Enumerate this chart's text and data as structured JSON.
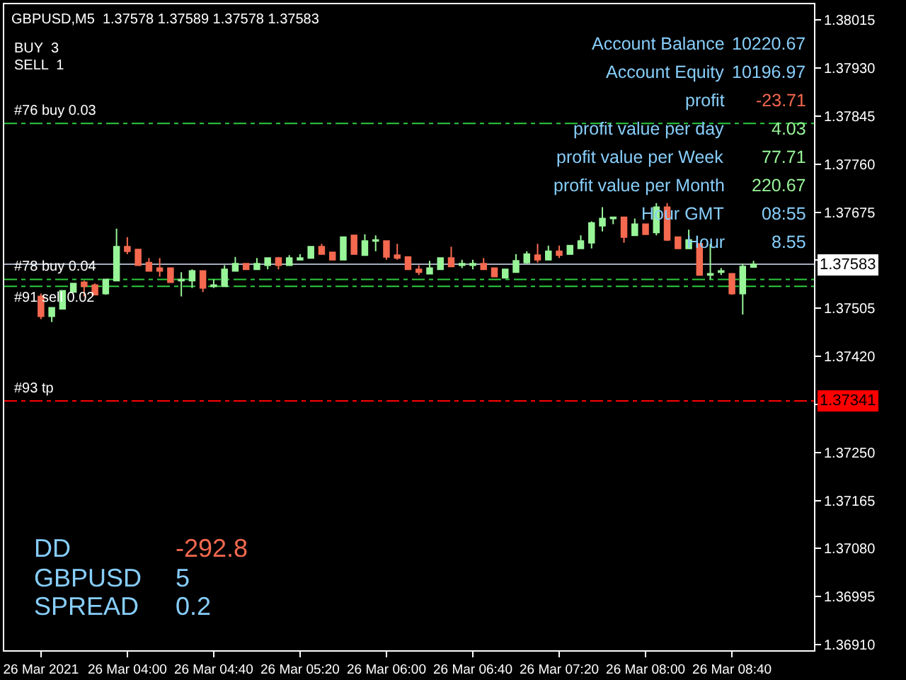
{
  "chart_data": {
    "type": "candlestick",
    "title": "GBPUSD,M5  1.37578 1.37589 1.37578 1.37583",
    "x": [
      "2021-03-26T03:20",
      "2021-03-26T03:25",
      "2021-03-26T03:30",
      "2021-03-26T03:35",
      "2021-03-26T03:40",
      "2021-03-26T03:45",
      "2021-03-26T03:50",
      "2021-03-26T03:55",
      "2021-03-26T04:00",
      "2021-03-26T04:05",
      "2021-03-26T04:10",
      "2021-03-26T04:15",
      "2021-03-26T04:20",
      "2021-03-26T04:25",
      "2021-03-26T04:30",
      "2021-03-26T04:35",
      "2021-03-26T04:40",
      "2021-03-26T04:45",
      "2021-03-26T04:50",
      "2021-03-26T04:55",
      "2021-03-26T05:00",
      "2021-03-26T05:05",
      "2021-03-26T05:10",
      "2021-03-26T05:15",
      "2021-03-26T05:20",
      "2021-03-26T05:25",
      "2021-03-26T05:30",
      "2021-03-26T05:35",
      "2021-03-26T05:40",
      "2021-03-26T05:45",
      "2021-03-26T05:50",
      "2021-03-26T05:55",
      "2021-03-26T06:00",
      "2021-03-26T06:05",
      "2021-03-26T06:10",
      "2021-03-26T06:15",
      "2021-03-26T06:20",
      "2021-03-26T06:25",
      "2021-03-26T06:30",
      "2021-03-26T06:35",
      "2021-03-26T06:40",
      "2021-03-26T06:45",
      "2021-03-26T06:50",
      "2021-03-26T06:55",
      "2021-03-26T07:00",
      "2021-03-26T07:05",
      "2021-03-26T07:10",
      "2021-03-26T07:15",
      "2021-03-26T07:20",
      "2021-03-26T07:25",
      "2021-03-26T07:30",
      "2021-03-26T07:35",
      "2021-03-26T07:40",
      "2021-03-26T07:45",
      "2021-03-26T07:50",
      "2021-03-26T07:55",
      "2021-03-26T08:00",
      "2021-03-26T08:05",
      "2021-03-26T08:10",
      "2021-03-26T08:15",
      "2021-03-26T08:20",
      "2021-03-26T08:25",
      "2021-03-26T08:30",
      "2021-03-26T08:35",
      "2021-03-26T08:40",
      "2021-03-26T08:45",
      "2021-03-26T08:50"
    ],
    "ohlc": [
      [
        1.37526,
        1.37531,
        1.37486,
        1.37491
      ],
      [
        1.37491,
        1.37506,
        1.37481,
        1.37506
      ],
      [
        1.37504,
        1.37536,
        1.37504,
        1.37536
      ],
      [
        1.37534,
        1.37549,
        1.37534,
        1.37549
      ],
      [
        1.37551,
        1.37554,
        1.37526,
        1.37544
      ],
      [
        1.37546,
        1.37549,
        1.37529,
        1.37529
      ],
      [
        1.37531,
        1.37556,
        1.37529,
        1.37556
      ],
      [
        1.37554,
        1.37646,
        1.37554,
        1.37614
      ],
      [
        1.37614,
        1.37631,
        1.37601,
        1.37606
      ],
      [
        1.37609,
        1.37609,
        1.37581,
        1.37581
      ],
      [
        1.37586,
        1.37594,
        1.37571,
        1.37571
      ],
      [
        1.37576,
        1.37594,
        1.37561,
        1.37571
      ],
      [
        1.37576,
        1.37576,
        1.37551,
        1.37551
      ],
      [
        1.37554,
        1.37569,
        1.37526,
        1.37556
      ],
      [
        1.37554,
        1.37574,
        1.37541,
        1.37571
      ],
      [
        1.37571,
        1.37571,
        1.37534,
        1.37541
      ],
      [
        1.37544,
        1.37556,
        1.37541,
        1.37546
      ],
      [
        1.37544,
        1.37581,
        1.37544,
        1.37574
      ],
      [
        1.37571,
        1.37596,
        1.37571,
        1.37584
      ],
      [
        1.37584,
        1.37584,
        1.37574,
        1.37574
      ],
      [
        1.37574,
        1.37594,
        1.37574,
        1.37584
      ],
      [
        1.37581,
        1.37594,
        1.37574,
        1.37594
      ],
      [
        1.37594,
        1.37596,
        1.37574,
        1.37581
      ],
      [
        1.37581,
        1.37599,
        1.37581,
        1.37594
      ],
      [
        1.37591,
        1.37601,
        1.37591,
        1.37594
      ],
      [
        1.37594,
        1.37614,
        1.37594,
        1.37614
      ],
      [
        1.37614,
        1.37619,
        1.37601,
        1.37601
      ],
      [
        1.37604,
        1.37604,
        1.37591,
        1.37591
      ],
      [
        1.37591,
        1.37631,
        1.37591,
        1.37631
      ],
      [
        1.37634,
        1.37634,
        1.37601,
        1.37601
      ],
      [
        1.37599,
        1.37636,
        1.37599,
        1.37624
      ],
      [
        1.37624,
        1.37634,
        1.37606,
        1.37626
      ],
      [
        1.37624,
        1.37624,
        1.37591,
        1.37596
      ],
      [
        1.37599,
        1.37619,
        1.37591,
        1.37594
      ],
      [
        1.37596,
        1.37596,
        1.37574,
        1.37574
      ],
      [
        1.37574,
        1.37581,
        1.37564,
        1.37569
      ],
      [
        1.37566,
        1.37589,
        1.37566,
        1.37576
      ],
      [
        1.37574,
        1.37594,
        1.37574,
        1.37594
      ],
      [
        1.37594,
        1.37614,
        1.37579,
        1.37579
      ],
      [
        1.37581,
        1.37591,
        1.37576,
        1.37584
      ],
      [
        1.37581,
        1.37591,
        1.37574,
        1.37584
      ],
      [
        1.37584,
        1.37594,
        1.37574,
        1.37574
      ],
      [
        1.37576,
        1.37576,
        1.37561,
        1.37561
      ],
      [
        1.37559,
        1.37574,
        1.37559,
        1.37574
      ],
      [
        1.37569,
        1.37601,
        1.37569,
        1.37589
      ],
      [
        1.37586,
        1.37606,
        1.37584,
        1.37601
      ],
      [
        1.37599,
        1.37619,
        1.37586,
        1.37591
      ],
      [
        1.37591,
        1.37616,
        1.37591,
        1.37606
      ],
      [
        1.37606,
        1.37616,
        1.37594,
        1.37599
      ],
      [
        1.37601,
        1.37616,
        1.37601,
        1.37616
      ],
      [
        1.37611,
        1.37634,
        1.37611,
        1.37624
      ],
      [
        1.37621,
        1.37659,
        1.37611,
        1.37656
      ],
      [
        1.37651,
        1.37684,
        1.37641,
        1.37664
      ],
      [
        1.37664,
        1.37666,
        1.37654,
        1.37666
      ],
      [
        1.37666,
        1.37666,
        1.37621,
        1.37631
      ],
      [
        1.37634,
        1.37664,
        1.37634,
        1.37654
      ],
      [
        1.37654,
        1.37654,
        1.37636,
        1.37636
      ],
      [
        1.37639,
        1.37691,
        1.37634,
        1.37684
      ],
      [
        1.37684,
        1.37691,
        1.37624,
        1.37626
      ],
      [
        1.37631,
        1.37631,
        1.37611,
        1.37611
      ],
      [
        1.37611,
        1.37644,
        1.37611,
        1.37626
      ],
      [
        1.37619,
        1.37619,
        1.37564,
        1.37564
      ],
      [
        1.37564,
        1.37619,
        1.37556,
        1.37566
      ],
      [
        1.37569,
        1.37576,
        1.37564,
        1.37571
      ],
      [
        1.37566,
        1.37566,
        1.37529,
        1.37531
      ],
      [
        1.37531,
        1.37584,
        1.37494,
        1.37579
      ],
      [
        1.37578,
        1.37589,
        1.37578,
        1.37583
      ]
    ],
    "colors": [
      "#f4694f",
      "#98f598",
      "#98f598",
      "#98f598",
      "#f4694f",
      "#f4694f",
      "#98f598",
      "#98f598",
      "#f4694f",
      "#f4694f",
      "#f4694f",
      "#f4694f",
      "#f4694f",
      "#98f598",
      "#98f598",
      "#f4694f",
      "#98f598",
      "#98f598",
      "#98f598",
      "#f4694f",
      "#98f598",
      "#98f598",
      "#f4694f",
      "#98f598",
      "#98f598",
      "#98f598",
      "#f4694f",
      "#f4694f",
      "#98f598",
      "#f4694f",
      "#98f598",
      "#98f598",
      "#f4694f",
      "#f4694f",
      "#f4694f",
      "#f4694f",
      "#98f598",
      "#98f598",
      "#f4694f",
      "#98f598",
      "#98f598",
      "#f4694f",
      "#f4694f",
      "#98f598",
      "#98f598",
      "#98f598",
      "#f4694f",
      "#98f598",
      "#f4694f",
      "#98f598",
      "#98f598",
      "#98f598",
      "#98f598",
      "#98f598",
      "#f4694f",
      "#98f598",
      "#f4694f",
      "#98f598",
      "#f4694f",
      "#f4694f",
      "#98f598",
      "#f4694f",
      "#98f598",
      "#98f598",
      "#f4694f",
      "#98f598",
      "#98f598"
    ],
    "xlim": [
      "2021-03-26T03:03",
      "2021-03-26T09:18"
    ],
    "xticks": [
      {
        "value": "2021-03-26T03:20",
        "label": "26 Mar 2021"
      },
      {
        "value": "2021-03-26T04:00",
        "label": "26 Mar 04:00"
      },
      {
        "value": "2021-03-26T04:40",
        "label": "26 Mar 04:40"
      },
      {
        "value": "2021-03-26T05:20",
        "label": "26 Mar 05:20"
      },
      {
        "value": "2021-03-26T06:00",
        "label": "26 Mar 06:00"
      },
      {
        "value": "2021-03-26T06:40",
        "label": "26 Mar 06:40"
      },
      {
        "value": "2021-03-26T07:20",
        "label": "26 Mar 07:20"
      },
      {
        "value": "2021-03-26T08:00",
        "label": "26 Mar 08:00"
      },
      {
        "value": "2021-03-26T08:40",
        "label": "26 Mar 08:40"
      }
    ],
    "ylim": [
      1.369,
      1.38043
    ],
    "yticks": [
      {
        "value": 1.3691,
        "label": "1.36910"
      },
      1.36995,
      {
        "value": 1.3708,
        "label": "1.37080"
      },
      1.37165,
      {
        "value": 1.3725,
        "label": "1.37250"
      },
      {
        "value": 1.37335,
        "label": null
      },
      {
        "value": 1.3742,
        "label": "1.37420"
      },
      1.37505,
      {
        "value": 1.3759,
        "label": null
      },
      1.37675,
      {
        "value": 1.3776,
        "label": "1.37760"
      },
      1.37845,
      {
        "value": 1.3793,
        "label": "1.37930"
      },
      1.38015
    ],
    "ref_lines": [
      {
        "axis": "y",
        "value": 1.37832,
        "label": "#76 buy 0.03",
        "color": "#2ecc40",
        "line_style": "dashed"
      },
      {
        "axis": "y",
        "value": 1.37556,
        "label": "#78 buy 0.04",
        "color": "#2ecc40",
        "line_style": "dashed"
      },
      {
        "axis": "y",
        "value": 1.37544,
        "label": "#91 sell 0.02",
        "color": "#2ecc40",
        "line_style": "dashed"
      },
      {
        "axis": "y",
        "value": 1.37341,
        "label": "#93 tp",
        "color": "#ff0000",
        "line_style": "dashed"
      },
      {
        "axis": "y",
        "value": 1.37583,
        "label": null,
        "color": "#a4acbc",
        "line_style": "solid"
      }
    ],
    "annotations": [
      "BUY  3",
      "SELL  1",
      "Account Balance",
      "10220.67",
      "Account Equity",
      "10196.97",
      "profit",
      "-23.71",
      "profit value per day",
      "4.03",
      "profit value per Week",
      "77.71",
      "profit value per Month",
      "220.67",
      "Hour GMT",
      "08:55",
      "Hour",
      "8.55",
      "DD",
      "-292.8",
      "GBPUSD",
      "5",
      "SPREAD",
      "0.2",
      {
        "text": "1.37583",
        "y": 1.37583
      },
      {
        "text": "1.37341",
        "y": 1.37341
      }
    ],
    "grid": false,
    "legend": false
  }
}
